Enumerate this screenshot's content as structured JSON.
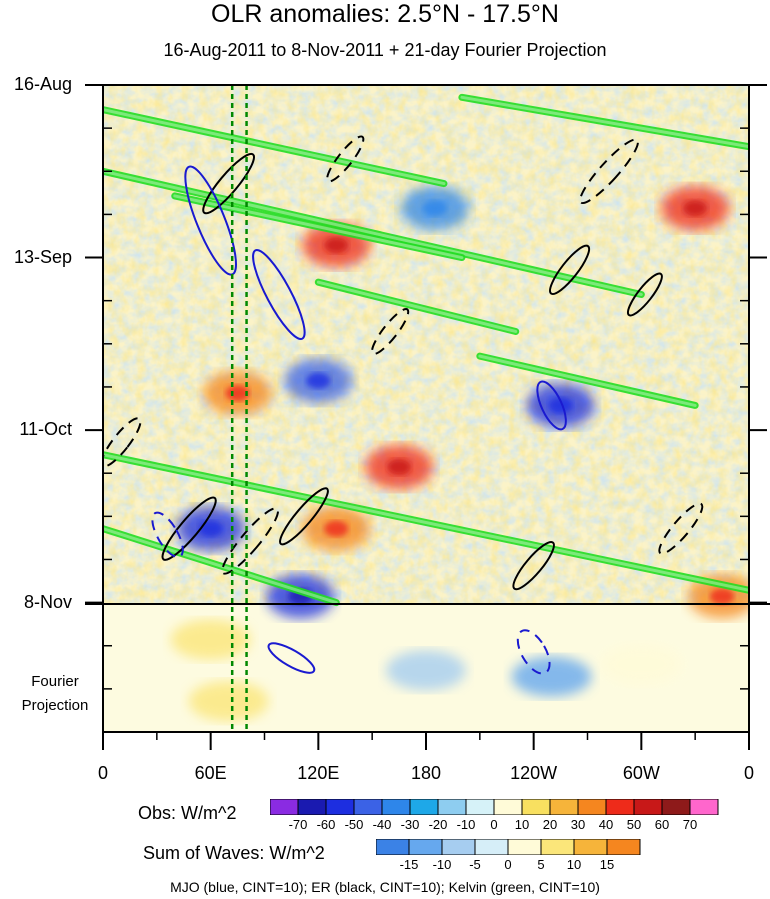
{
  "title": "OLR anomalies: 2.5°N - 17.5°N",
  "subtitle": "16-Aug-2011 to 8-Nov-2011 + 21-day Fourier Projection",
  "fourier_label": "Fourier\nProjection",
  "footnote": "MJO (blue, CINT=10); ER (black, CINT=10); Kelvin (green, CINT=10)",
  "colors": {
    "mjo": "#1a1ad0",
    "er": "#000000",
    "kelvin": "#22dd22",
    "marker": "#008800",
    "obs_scale": [
      "#8a2be2",
      "#1a1ab0",
      "#1d2ee0",
      "#3b62e6",
      "#2e86ea",
      "#1ea8e8",
      "#8ecdf0",
      "#d6f2f8",
      "#fffbd8",
      "#f8e060",
      "#f6b43a",
      "#f5861f",
      "#ee2b1a",
      "#c81818",
      "#8e1a1a",
      "#ff66cc"
    ],
    "sum_scale": [
      "#3b82e6",
      "#66a8ee",
      "#a6cdf0",
      "#d6eef8",
      "#fffbd8",
      "#fbe67a",
      "#f6b43a",
      "#f5861f"
    ]
  },
  "chart_data": {
    "type": "heatmap",
    "title": "OLR anomalies: 2.5°N - 17.5°N",
    "subtitle": "16-Aug-2011 to 8-Nov-2011 + 21-day Fourier Projection",
    "xlabel": "",
    "ylabel": "",
    "x_ticks": [
      "0",
      "60E",
      "120E",
      "180",
      "120W",
      "60W",
      "0"
    ],
    "x_tick_lon": [
      0,
      60,
      120,
      180,
      240,
      300,
      360
    ],
    "y_ticks": [
      "16-Aug",
      "13-Sep",
      "11-Oct",
      "8-Nov"
    ],
    "y_tick_day": [
      0,
      28,
      56,
      84
    ],
    "xlim": [
      0,
      360
    ],
    "ylim_days": [
      0,
      105
    ],
    "observation_end_day": 84,
    "projection_days": 21,
    "markers_lon": [
      72,
      80
    ],
    "obs_colorbar": {
      "label": "Obs: W/m^2",
      "levels": [
        -70,
        -60,
        -50,
        -40,
        -30,
        -20,
        -10,
        0,
        10,
        20,
        30,
        40,
        50,
        60,
        70
      ]
    },
    "sum_colorbar": {
      "label": "Sum of Waves: W/m^2",
      "levels": [
        -15,
        -10,
        -5,
        0,
        5,
        10,
        15
      ]
    },
    "mjo_features": [
      {
        "lon": 60,
        "day": 22,
        "rx": 14,
        "ry": 58,
        "rot": -22
      },
      {
        "lon": 98,
        "day": 34,
        "rx": 12,
        "ry": 50,
        "rot": -28
      },
      {
        "lon": 36,
        "day": 73,
        "rx": 10,
        "ry": 25,
        "rot": -30
      },
      {
        "lon": 250,
        "day": 52,
        "rx": 10,
        "ry": 26,
        "rot": -25
      },
      {
        "lon": 240,
        "day": 92,
        "rx": 12,
        "ry": 24,
        "rot": -30
      },
      {
        "lon": 105,
        "day": 93,
        "rx": 26,
        "ry": 8,
        "rot": 30
      }
    ],
    "er_features": [
      {
        "lon": 48,
        "day": 72,
        "rx": 9,
        "ry": 40,
        "rot": 40
      },
      {
        "lon": 82,
        "day": 74,
        "rx": 9,
        "ry": 42,
        "rot": 40
      },
      {
        "lon": 112,
        "day": 70,
        "rx": 8,
        "ry": 36,
        "rot": 40
      },
      {
        "lon": 135,
        "day": 12,
        "rx": 7,
        "ry": 28,
        "rot": 38
      },
      {
        "lon": 260,
        "day": 30,
        "rx": 8,
        "ry": 30,
        "rot": 38
      },
      {
        "lon": 282,
        "day": 14,
        "rx": 9,
        "ry": 42,
        "rot": 42
      },
      {
        "lon": 302,
        "day": 34,
        "rx": 7,
        "ry": 26,
        "rot": 38
      },
      {
        "lon": 322,
        "day": 72,
        "rx": 8,
        "ry": 32,
        "rot": 40
      },
      {
        "lon": 240,
        "day": 78,
        "rx": 8,
        "ry": 30,
        "rot": 40
      },
      {
        "lon": 10,
        "day": 58,
        "rx": 8,
        "ry": 30,
        "rot": 38
      },
      {
        "lon": 70,
        "day": 16,
        "rx": 9,
        "ry": 38,
        "rot": 40
      },
      {
        "lon": 160,
        "day": 40,
        "rx": 7,
        "ry": 28,
        "rot": 38
      }
    ],
    "kelvin_features": [
      {
        "lon0": 0,
        "day0": 4,
        "lon1": 190,
        "day1": 16
      },
      {
        "lon0": 0,
        "day0": 14,
        "lon1": 300,
        "day1": 34
      },
      {
        "lon0": 40,
        "day0": 18,
        "lon1": 200,
        "day1": 28
      },
      {
        "lon0": 0,
        "day0": 60,
        "lon1": 360,
        "day1": 82
      },
      {
        "lon0": 200,
        "day0": 2,
        "lon1": 360,
        "day1": 10
      },
      {
        "lon0": 120,
        "day0": 32,
        "lon1": 230,
        "day1": 40
      },
      {
        "lon0": 210,
        "day0": 44,
        "lon1": 330,
        "day1": 52
      },
      {
        "lon0": 0,
        "day0": 72,
        "lon1": 130,
        "day1": 84
      }
    ],
    "obs_anomaly_features": [
      {
        "lon": 330,
        "day": 20,
        "v": 45
      },
      {
        "lon": 75,
        "day": 50,
        "v": 40
      },
      {
        "lon": 165,
        "day": 62,
        "v": 50
      },
      {
        "lon": 130,
        "day": 72,
        "v": 40
      },
      {
        "lon": 60,
        "day": 72,
        "v": -50
      },
      {
        "lon": 120,
        "day": 48,
        "v": -45
      },
      {
        "lon": 255,
        "day": 52,
        "v": -50
      },
      {
        "lon": 130,
        "day": 26,
        "v": 45
      },
      {
        "lon": 185,
        "day": 20,
        "v": -30
      },
      {
        "lon": 345,
        "day": 83,
        "v": 35
      },
      {
        "lon": 110,
        "day": 83,
        "v": -55
      }
    ]
  }
}
